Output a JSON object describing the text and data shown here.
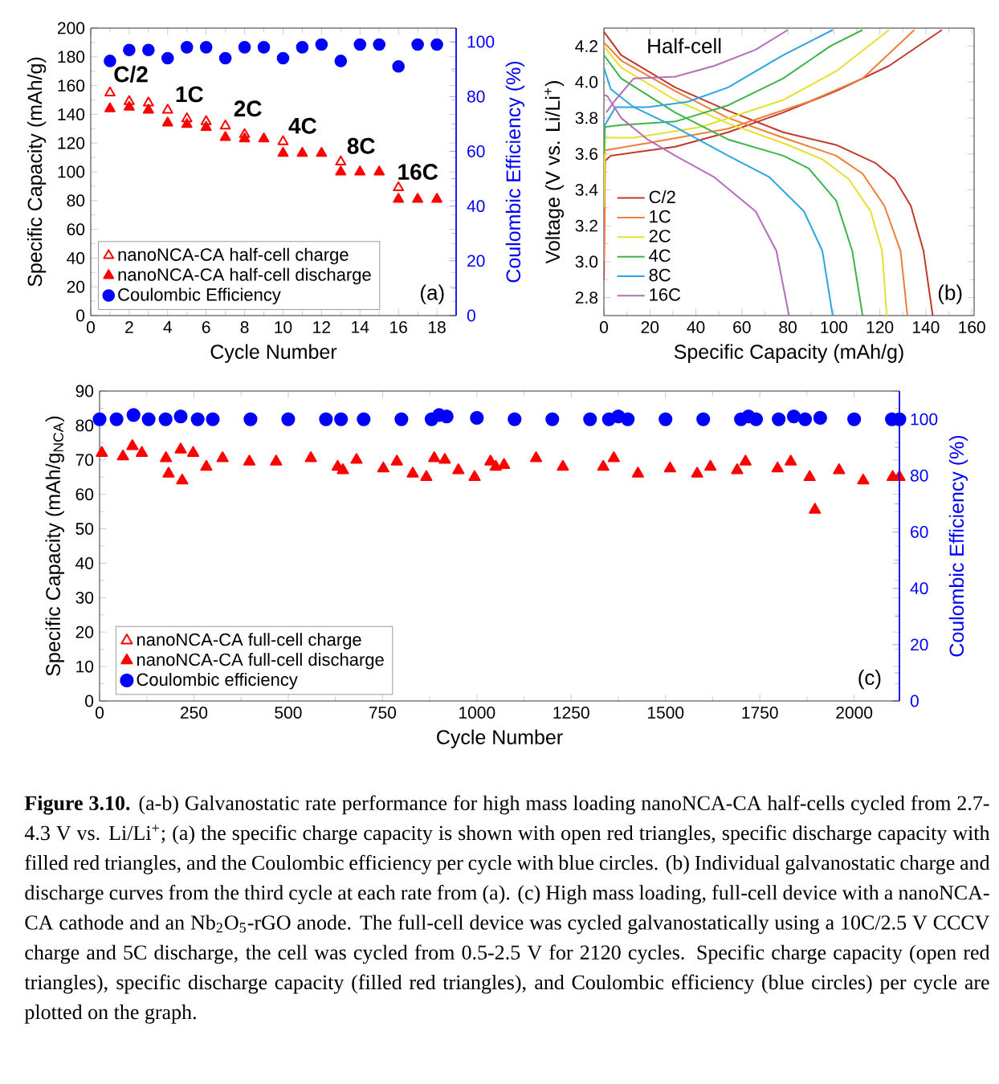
{
  "chart_data": [
    {
      "type": "scatter",
      "xlabel": "Cycle Number",
      "ylabel": "Specific Capacity (mAh/g)",
      "y2label": "Coulombic Efficiency (%)",
      "xlim": [
        0,
        19
      ],
      "xticks": [
        0,
        2,
        4,
        6,
        8,
        10,
        12,
        14,
        16,
        18
      ],
      "ylim": [
        0,
        200
      ],
      "yticks": [
        0,
        20,
        40,
        60,
        80,
        100,
        120,
        140,
        160,
        180,
        200
      ],
      "y2lim": [
        0,
        105
      ],
      "y2ticks": [
        0,
        20,
        40,
        60,
        80,
        100
      ],
      "legend": "bottom left",
      "annotations": [
        "(a)",
        "C/2",
        "1C",
        "2C",
        "4C",
        "8C",
        "16C"
      ],
      "series": [
        {
          "name": "nanoNCA-CA half-cell charge",
          "color": "#ff0000",
          "marker": "triangle",
          "x": [
            1,
            2,
            3,
            4,
            5,
            6,
            7,
            8,
            10,
            13,
            16
          ],
          "values": [
            155,
            149,
            148,
            143,
            137,
            135,
            132,
            126,
            121,
            107,
            89
          ]
        },
        {
          "name": "nanoNCA-CA half-cell discharge",
          "color": "#ff0000",
          "marker": "triangle",
          "x": [
            1,
            2,
            3,
            4,
            5,
            6,
            7,
            8,
            9,
            10,
            11,
            12,
            13,
            14,
            15,
            16,
            17,
            18
          ],
          "values": [
            144,
            145,
            143,
            134,
            133,
            131,
            124,
            123,
            123,
            113,
            113,
            113,
            100,
            100,
            100,
            81,
            81,
            81
          ]
        },
        {
          "name": "Coulombic Efficiency",
          "color": "#0000ff",
          "marker": "circle",
          "axis": "y2",
          "x": [
            1,
            2,
            3,
            4,
            5,
            6,
            7,
            8,
            9,
            10,
            11,
            12,
            13,
            14,
            15,
            16,
            17,
            18
          ],
          "values": [
            93,
            97,
            97,
            94,
            98,
            98,
            94,
            98,
            98,
            94,
            98,
            99,
            93,
            99,
            99,
            91,
            99,
            99
          ]
        }
      ]
    },
    {
      "type": "line",
      "xlabel": "Specific Capacity (mAh/g)",
      "ylabel": "Voltage (V vs. Li/Li$^{+}$)",
      "marker": "none",
      "xlim": [
        0,
        161
      ],
      "xticks": [
        0,
        20,
        40,
        60,
        80,
        100,
        120,
        140,
        160
      ],
      "ylim": [
        2.7,
        4.3
      ],
      "yticks": [
        2.8,
        {
          "value": 3,
          "label": "3.0"
        },
        3.2,
        3.4,
        3.6,
        3.8,
        {
          "value": 4,
          "label": "4.0"
        },
        4.2
      ],
      "legend": "bottom left",
      "annotations": [
        "Half-cell",
        "(b)"
      ],
      "series": [
        {
          "name": "C/2",
          "color": "#c0392b",
          "x": [
            0,
            0.5,
            3,
            31,
            54,
            78,
            101,
            124,
            147
          ],
          "values": [
            2.9,
            3.56,
            3.59,
            3.64,
            3.72,
            3.83,
            3.95,
            4.09,
            4.29
          ]
        },
        {
          "color": "#c0392b",
          "x": [
            0,
            7.5,
            31,
            54,
            78,
            101,
            118,
            126.5,
            133.5,
            139,
            143
          ],
          "values": [
            4.28,
            4.15,
            3.97,
            3.84,
            3.72,
            3.65,
            3.55,
            3.46,
            3.31,
            3.06,
            2.7
          ]
        },
        {
          "name": "1C",
          "color": "#f07d3a",
          "x": [
            0,
            0.5,
            19,
            54,
            89,
            112.5,
            135
          ],
          "values": [
            3.0,
            3.62,
            3.66,
            3.74,
            3.89,
            4.02,
            4.29
          ]
        },
        {
          "color": "#f07d3a",
          "x": [
            0,
            7.5,
            31,
            54,
            78,
            101,
            112.5,
            122,
            129,
            132
          ],
          "values": [
            4.22,
            4.12,
            3.95,
            3.8,
            3.69,
            3.59,
            3.49,
            3.31,
            3.06,
            2.7
          ]
        },
        {
          "name": "2C",
          "color": "#e6e02e",
          "x": [
            0,
            0.5,
            13,
            42.5,
            78,
            101,
            124
          ],
          "values": [
            3.3,
            3.69,
            3.69,
            3.75,
            3.9,
            4.06,
            4.29
          ]
        },
        {
          "color": "#e6e02e",
          "x": [
            0,
            7.5,
            31,
            54,
            78,
            95,
            106.5,
            116,
            121,
            123
          ],
          "values": [
            4.2,
            4.08,
            3.9,
            3.77,
            3.66,
            3.57,
            3.46,
            3.28,
            3.06,
            2.7
          ]
        },
        {
          "name": "4C",
          "color": "#3cb44a",
          "x": [
            0,
            0.5,
            7.5,
            31,
            54,
            78,
            98.5,
            112.5
          ],
          "values": [
            3.6,
            3.75,
            3.76,
            3.78,
            3.87,
            4.02,
            4.2,
            4.29
          ]
        },
        {
          "color": "#3cb44a",
          "x": [
            0,
            7.5,
            31,
            54,
            78,
            89,
            101,
            108,
            112.5
          ],
          "values": [
            4.15,
            4.02,
            3.83,
            3.68,
            3.59,
            3.52,
            3.34,
            3.06,
            2.7
          ]
        },
        {
          "name": "8C",
          "color": "#2ba6de",
          "x": [
            0,
            5,
            19,
            36.5,
            54,
            78,
            99.5
          ],
          "values": [
            3.75,
            3.86,
            3.86,
            3.89,
            3.97,
            4.15,
            4.29
          ]
        },
        {
          "color": "#2ba6de",
          "x": [
            0,
            3,
            13,
            31,
            54,
            72,
            87,
            95,
            99.5
          ],
          "values": [
            4.08,
            3.96,
            3.86,
            3.75,
            3.59,
            3.47,
            3.28,
            3.06,
            2.7
          ]
        },
        {
          "name": "16C",
          "color": "#b36fba",
          "x": [
            1,
            5,
            13,
            31,
            48,
            66,
            80
          ],
          "values": [
            3.83,
            3.9,
            4.02,
            4.03,
            4.09,
            4.18,
            4.29
          ]
        },
        {
          "color": "#b36fba",
          "x": [
            0,
            1.6,
            7.5,
            19,
            31,
            48,
            66,
            75,
            80.5
          ],
          "values": [
            3.93,
            3.92,
            3.8,
            3.68,
            3.59,
            3.47,
            3.28,
            3.06,
            2.7
          ]
        }
      ]
    },
    {
      "type": "scatter",
      "xlabel": "Cycle Number",
      "ylabel": "Specific Capacity (mAh/g$_{NCA}$)",
      "y2label": "Coulombic Efficiency (%)",
      "xlim": [
        0,
        2120
      ],
      "xticks": [
        0,
        250,
        500,
        750,
        1000,
        1250,
        1500,
        1750,
        2000
      ],
      "ylim": [
        0,
        90
      ],
      "yticks": [
        0,
        10,
        20,
        30,
        40,
        50,
        60,
        70,
        80,
        90
      ],
      "y2lim": [
        0,
        110
      ],
      "y2ticks": [
        0,
        20,
        40,
        60,
        80,
        100
      ],
      "legend": "bottom left",
      "annotations": [
        "(c)",
        "**Figure 3.10.** (a-b) Galvanostatic rate performance for high mass loading nanoNCA-CA half-cells cycled from 2.7-4.3 V vs. Li/Li$^{+}$; (a) the specific charge capacity is shown with open red triangles, specific discharge capacity with filled red triangles, and the Coulombic efficiency per cycle with blue circles. (b) Individual galvanostatic charge and discharge curves from the third cycle at each rate from (a). (c) High mass loading, full-cell device with a nanoNCA-CA cathode and an Nb$_{2}$O$_{5}$-rGO anode. The full-cell device was cycled galvanostatically using a 10C/2.5 V CCCV charge and 5C discharge, the cell was cycled from 0.5-2.5 V for 2120 cycles. Specific charge capacity (open red triangles), specific discharge capacity (filled red triangles), and Coulombic efficiency (blue circles) per cycle are plotted on the graph."
      ],
      "series": [
        {
          "name": "nanoNCA-CA full-cell charge",
          "color": "#ff0000",
          "marker": "triangle"
        },
        {
          "name": "nanoNCA-CA full-cell discharge",
          "color": "#ff0000",
          "marker": "triangle",
          "x": [
            6,
            62,
            87,
            112,
            176,
            183,
            215,
            219,
            248,
            283,
            326,
            397,
            468,
            560,
            631,
            645,
            681,
            752,
            788,
            830,
            866,
            887,
            915,
            951,
            994,
            1036,
            1050,
            1072,
            1157,
            1228,
            1335,
            1363,
            1427,
            1512,
            1584,
            1619,
            1690,
            1712,
            1797,
            1832,
            1882,
            1896,
            1960,
            2024,
            2102,
            2120
          ],
          "values": [
            72,
            71,
            74,
            72,
            70.5,
            66,
            73,
            64,
            72,
            68,
            70.5,
            69.5,
            69.5,
            70.5,
            68,
            67,
            70,
            67.5,
            69.5,
            66,
            65,
            70.5,
            70,
            67,
            65,
            69.5,
            68,
            68.5,
            70.5,
            68,
            68,
            70.5,
            66,
            67.5,
            66,
            68,
            67,
            69.5,
            67.5,
            69.5,
            65,
            55.5,
            67,
            64,
            65,
            65
          ]
        },
        {
          "name": "Coulombic efficiency",
          "color": "#0000ff",
          "marker": "circle",
          "axis": "y2",
          "x": [
            0,
            45,
            90,
            130,
            175,
            215,
            260,
            300,
            400,
            500,
            600,
            640,
            700,
            800,
            880,
            900,
            920,
            1000,
            1100,
            1200,
            1300,
            1350,
            1375,
            1400,
            1500,
            1600,
            1700,
            1720,
            1740,
            1800,
            1840,
            1870,
            1910,
            2000,
            2100,
            2120
          ],
          "values": [
            100,
            100,
            101.5,
            100,
            100,
            101,
            100,
            100,
            100,
            100,
            100,
            100,
            100,
            100,
            100,
            101.5,
            101,
            100.5,
            100,
            100,
            100,
            100,
            101,
            100,
            100,
            100,
            100,
            101,
            100,
            100,
            101,
            100,
            100.5,
            100,
            100,
            100
          ]
        }
      ]
    }
  ]
}
